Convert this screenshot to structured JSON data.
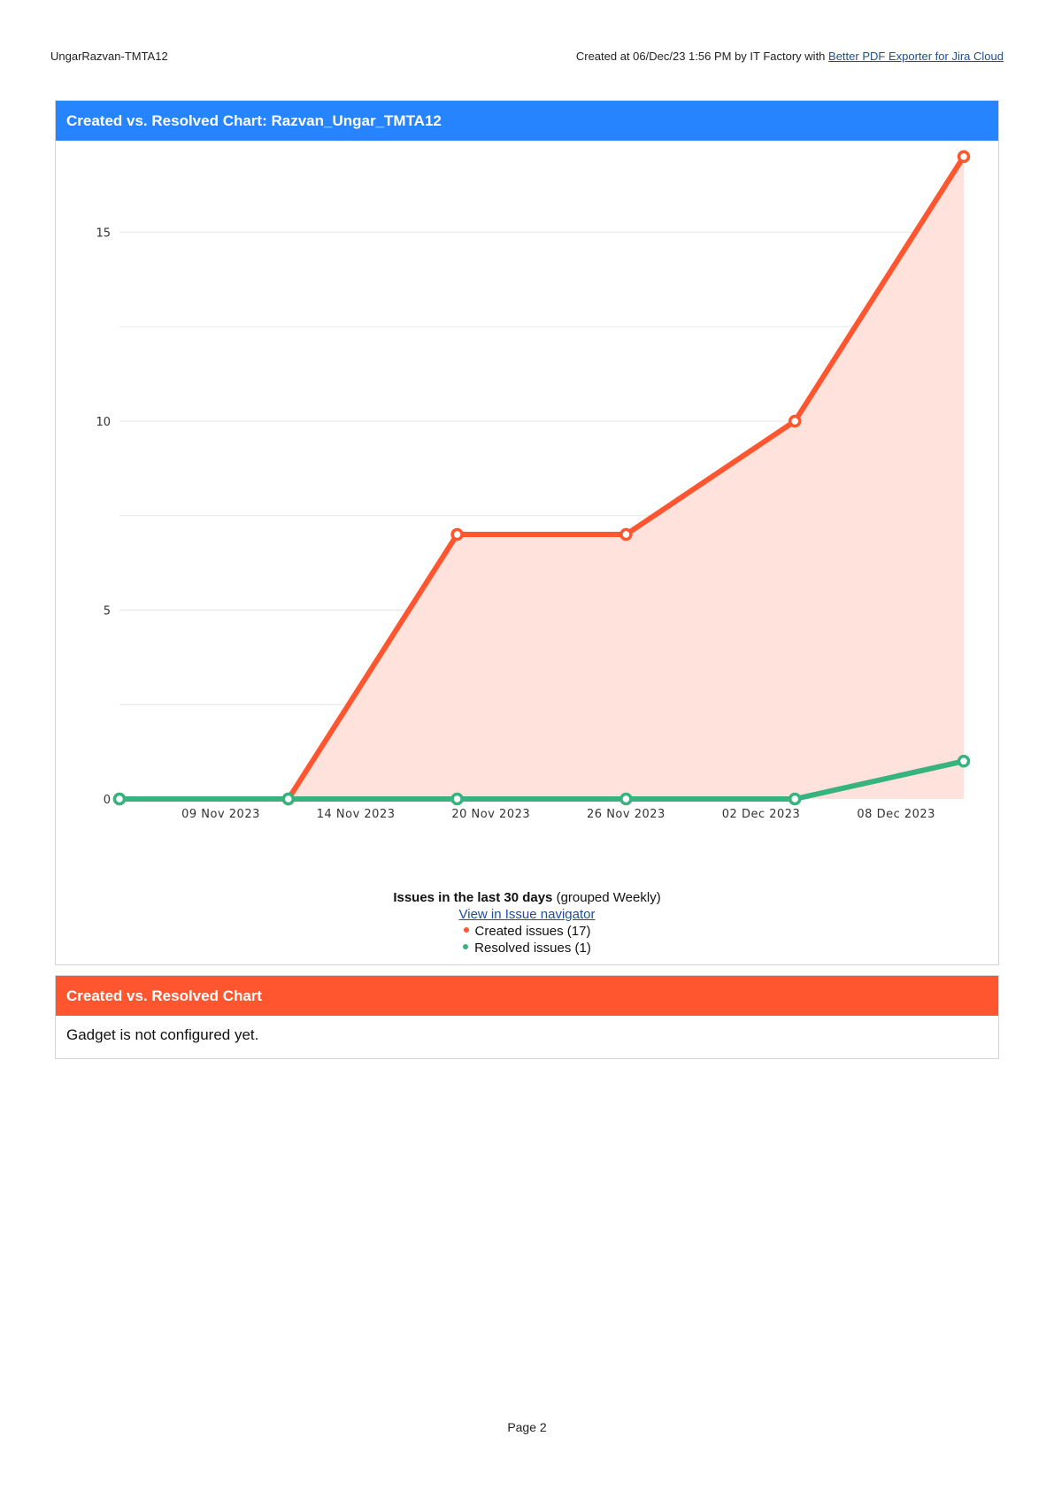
{
  "header": {
    "left": "UngarRazvan-TMTA12",
    "right_prefix": "Created at 06/Dec/23 1:56 PM by IT Factory with ",
    "right_link": "Better PDF Exporter for Jira Cloud"
  },
  "gadget1": {
    "title": "Created vs. Resolved Chart: Razvan_Ungar_TMTA12",
    "subtitle_bold": "Issues in the last 30 days",
    "subtitle_rest": " (grouped Weekly)",
    "link": "View in Issue navigator",
    "legend": [
      {
        "label": "Created issues (17)",
        "color": "#ff5630"
      },
      {
        "label": "Resolved issues (1)",
        "color": "#36b37e"
      }
    ]
  },
  "gadget2": {
    "title": "Created vs. Resolved Chart",
    "body": "Gadget is not configured yet."
  },
  "page_number": "Page 2",
  "chart_data": {
    "type": "area",
    "x": [
      "2023-11-05",
      "2023-11-12",
      "2023-11-19",
      "2023-11-26",
      "2023-12-03",
      "2023-12-10"
    ],
    "x_tick_labels": [
      "09 Nov 2023",
      "14 Nov 2023",
      "20 Nov 2023",
      "26 Nov 2023",
      "02 Dec 2023",
      "08 Dec 2023"
    ],
    "y_ticks": [
      0,
      5,
      10,
      15
    ],
    "ylim": [
      0,
      17
    ],
    "grid": true,
    "series": [
      {
        "name": "Created issues (17)",
        "values": [
          0,
          0,
          7,
          7,
          10,
          17
        ],
        "color": "#ff5630",
        "fill": "#ffe2dc"
      },
      {
        "name": "Resolved issues (1)",
        "values": [
          0,
          0,
          0,
          0,
          0,
          1
        ],
        "color": "#36b37e"
      }
    ]
  }
}
